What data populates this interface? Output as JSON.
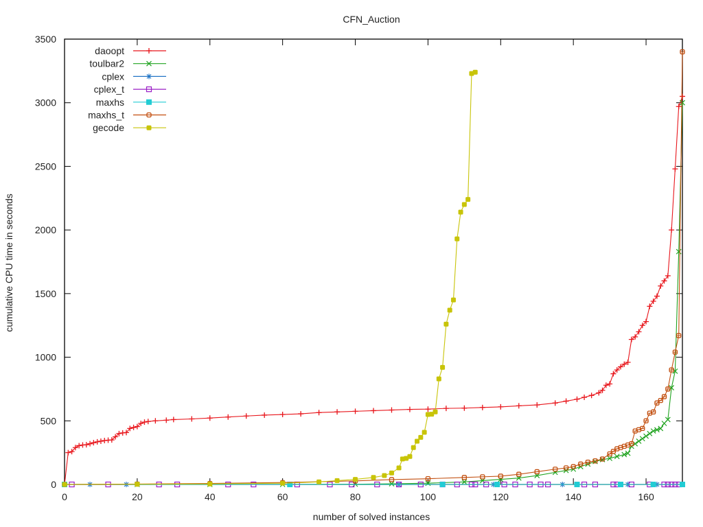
{
  "chart_data": {
    "type": "line",
    "title": "CFN_Auction",
    "xlabel": "number of solved instances",
    "ylabel": "cumulative CPU time in seconds",
    "xlim": [
      0,
      170
    ],
    "ylim": [
      0,
      3500
    ],
    "xticks": [
      0,
      20,
      40,
      60,
      80,
      100,
      120,
      140,
      160
    ],
    "yticks": [
      0,
      500,
      1000,
      1500,
      2000,
      2500,
      3000,
      3500
    ],
    "grid": false,
    "legend_position": "top-left",
    "series": [
      {
        "name": "daoopt",
        "color": "#e8151b",
        "marker": "plus",
        "points": [
          [
            0,
            0
          ],
          [
            1,
            250
          ],
          [
            2,
            258
          ],
          [
            3,
            290
          ],
          [
            4,
            305
          ],
          [
            5,
            310
          ],
          [
            6,
            312
          ],
          [
            7,
            320
          ],
          [
            8,
            328
          ],
          [
            9,
            335
          ],
          [
            10,
            340
          ],
          [
            11,
            345
          ],
          [
            12,
            348
          ],
          [
            13,
            350
          ],
          [
            14,
            375
          ],
          [
            15,
            400
          ],
          [
            16,
            405
          ],
          [
            17,
            408
          ],
          [
            18,
            440
          ],
          [
            19,
            448
          ],
          [
            20,
            455
          ],
          [
            21,
            480
          ],
          [
            22,
            490
          ],
          [
            23,
            495
          ],
          [
            25,
            500
          ],
          [
            28,
            505
          ],
          [
            30,
            510
          ],
          [
            35,
            515
          ],
          [
            40,
            522
          ],
          [
            45,
            530
          ],
          [
            50,
            538
          ],
          [
            55,
            545
          ],
          [
            60,
            550
          ],
          [
            65,
            555
          ],
          [
            70,
            565
          ],
          [
            75,
            570
          ],
          [
            80,
            575
          ],
          [
            85,
            580
          ],
          [
            90,
            585
          ],
          [
            95,
            590
          ],
          [
            100,
            592
          ],
          [
            105,
            598
          ],
          [
            110,
            600
          ],
          [
            115,
            605
          ],
          [
            120,
            610
          ],
          [
            125,
            618
          ],
          [
            130,
            625
          ],
          [
            135,
            640
          ],
          [
            138,
            655
          ],
          [
            141,
            670
          ],
          [
            143,
            685
          ],
          [
            145,
            700
          ],
          [
            147,
            720
          ],
          [
            148,
            740
          ],
          [
            149,
            780
          ],
          [
            150,
            790
          ],
          [
            151,
            870
          ],
          [
            152,
            900
          ],
          [
            153,
            925
          ],
          [
            154,
            945
          ],
          [
            155,
            960
          ],
          [
            156,
            1140
          ],
          [
            157,
            1160
          ],
          [
            158,
            1200
          ],
          [
            159,
            1250
          ],
          [
            160,
            1280
          ],
          [
            161,
            1400
          ],
          [
            162,
            1440
          ],
          [
            163,
            1480
          ],
          [
            164,
            1560
          ],
          [
            165,
            1600
          ],
          [
            166,
            1640
          ],
          [
            167,
            2000
          ],
          [
            168,
            2480
          ],
          [
            169,
            2970
          ],
          [
            170,
            3050
          ]
        ]
      },
      {
        "name": "toulbar2",
        "color": "#1fa31f",
        "marker": "x",
        "points": [
          [
            0,
            0
          ],
          [
            20,
            0
          ],
          [
            40,
            0
          ],
          [
            60,
            0
          ],
          [
            80,
            2
          ],
          [
            90,
            5
          ],
          [
            100,
            10
          ],
          [
            110,
            20
          ],
          [
            115,
            30
          ],
          [
            120,
            40
          ],
          [
            125,
            50
          ],
          [
            130,
            70
          ],
          [
            135,
            95
          ],
          [
            138,
            110
          ],
          [
            140,
            120
          ],
          [
            142,
            140
          ],
          [
            144,
            160
          ],
          [
            146,
            180
          ],
          [
            148,
            195
          ],
          [
            150,
            205
          ],
          [
            152,
            220
          ],
          [
            154,
            235
          ],
          [
            155,
            245
          ],
          [
            156,
            300
          ],
          [
            157,
            320
          ],
          [
            158,
            340
          ],
          [
            159,
            360
          ],
          [
            160,
            380
          ],
          [
            161,
            400
          ],
          [
            162,
            420
          ],
          [
            163,
            430
          ],
          [
            164,
            440
          ],
          [
            165,
            480
          ],
          [
            166,
            510
          ],
          [
            167,
            760
          ],
          [
            168,
            890
          ],
          [
            169,
            1830
          ],
          [
            170,
            3000
          ]
        ]
      },
      {
        "name": "cplex",
        "color": "#2175c6",
        "marker": "star",
        "points": [
          [
            0,
            0
          ],
          [
            7,
            0
          ],
          [
            17,
            0
          ],
          [
            92,
            0
          ],
          [
            118,
            0
          ],
          [
            137,
            0
          ],
          [
            155,
            0
          ],
          [
            163,
            0
          ],
          [
            170,
            0
          ]
        ]
      },
      {
        "name": "cplex_t",
        "color": "#9a1ec6",
        "marker": "open-square",
        "points": [
          [
            2,
            0
          ],
          [
            12,
            0
          ],
          [
            26,
            0
          ],
          [
            31,
            0
          ],
          [
            45,
            0
          ],
          [
            52,
            0
          ],
          [
            64,
            0
          ],
          [
            73,
            0
          ],
          [
            79,
            0
          ],
          [
            86,
            0
          ],
          [
            92,
            0
          ],
          [
            98,
            0
          ],
          [
            104,
            0
          ],
          [
            108,
            0
          ],
          [
            112,
            0
          ],
          [
            113,
            0
          ],
          [
            116,
            0
          ],
          [
            121,
            0
          ],
          [
            124,
            0
          ],
          [
            128,
            0
          ],
          [
            131,
            0
          ],
          [
            133,
            0
          ],
          [
            143,
            0
          ],
          [
            146,
            0
          ],
          [
            151,
            0
          ],
          [
            152,
            0
          ],
          [
            156,
            0
          ],
          [
            161,
            0
          ],
          [
            165,
            0
          ],
          [
            166,
            0
          ],
          [
            167,
            0
          ],
          [
            168,
            0
          ],
          [
            169,
            0
          ]
        ]
      },
      {
        "name": "maxhs",
        "color": "#22ccd4",
        "marker": "filled-square",
        "points": [
          [
            0,
            0
          ],
          [
            62,
            0
          ],
          [
            104,
            0
          ],
          [
            119,
            0
          ],
          [
            141,
            0
          ],
          [
            153,
            0
          ],
          [
            162,
            0
          ],
          [
            170,
            0
          ]
        ]
      },
      {
        "name": "maxhs_t",
        "color": "#c24e0e",
        "marker": "open-circle",
        "points": [
          [
            0,
            0
          ],
          [
            20,
            3
          ],
          [
            40,
            8
          ],
          [
            60,
            15
          ],
          [
            80,
            28
          ],
          [
            90,
            38
          ],
          [
            100,
            45
          ],
          [
            110,
            55
          ],
          [
            115,
            60
          ],
          [
            120,
            65
          ],
          [
            125,
            80
          ],
          [
            130,
            100
          ],
          [
            135,
            120
          ],
          [
            138,
            130
          ],
          [
            140,
            140
          ],
          [
            142,
            160
          ],
          [
            144,
            175
          ],
          [
            146,
            185
          ],
          [
            148,
            200
          ],
          [
            150,
            240
          ],
          [
            151,
            260
          ],
          [
            152,
            280
          ],
          [
            153,
            290
          ],
          [
            154,
            300
          ],
          [
            155,
            310
          ],
          [
            156,
            320
          ],
          [
            157,
            420
          ],
          [
            158,
            430
          ],
          [
            159,
            440
          ],
          [
            160,
            500
          ],
          [
            161,
            560
          ],
          [
            162,
            570
          ],
          [
            163,
            640
          ],
          [
            164,
            660
          ],
          [
            165,
            690
          ],
          [
            166,
            750
          ],
          [
            167,
            900
          ],
          [
            168,
            1040
          ],
          [
            169,
            1170
          ],
          [
            170,
            3400
          ]
        ]
      },
      {
        "name": "gecode",
        "color": "#c8c408",
        "marker": "filled-circle",
        "points": [
          [
            0,
            0
          ],
          [
            20,
            2
          ],
          [
            40,
            4
          ],
          [
            60,
            10
          ],
          [
            70,
            20
          ],
          [
            75,
            30
          ],
          [
            80,
            40
          ],
          [
            85,
            55
          ],
          [
            88,
            70
          ],
          [
            90,
            90
          ],
          [
            92,
            130
          ],
          [
            93,
            200
          ],
          [
            94,
            205
          ],
          [
            95,
            220
          ],
          [
            96,
            290
          ],
          [
            97,
            340
          ],
          [
            98,
            370
          ],
          [
            99,
            410
          ],
          [
            100,
            550
          ],
          [
            101,
            552
          ],
          [
            102,
            570
          ],
          [
            103,
            830
          ],
          [
            104,
            920
          ],
          [
            105,
            1260
          ],
          [
            106,
            1370
          ],
          [
            107,
            1450
          ],
          [
            108,
            1930
          ],
          [
            109,
            2140
          ],
          [
            110,
            2200
          ],
          [
            111,
            2240
          ],
          [
            112,
            3230
          ],
          [
            113,
            3240
          ]
        ]
      }
    ]
  }
}
